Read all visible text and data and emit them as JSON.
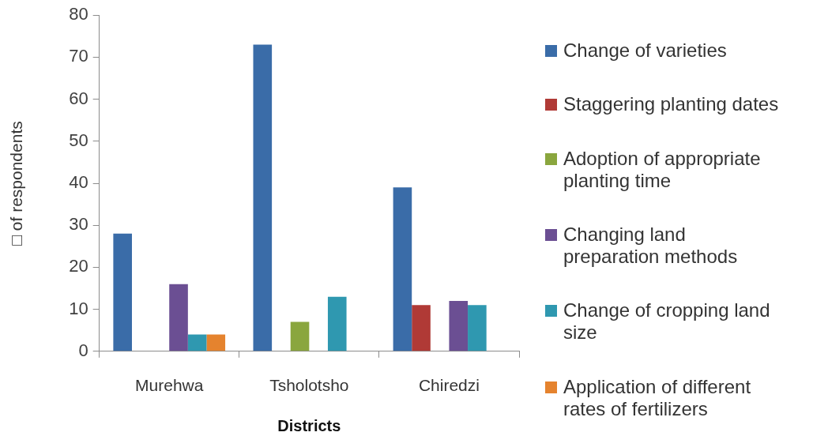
{
  "chart_data": {
    "type": "bar",
    "xlabel": "Districts",
    "ylabel": "□ of respondents",
    "categories": [
      "Murehwa",
      "Tsholotsho",
      "Chiredzi"
    ],
    "series": [
      {
        "name": "Change of varieties",
        "color": "#3a6ca8",
        "values": [
          28,
          73,
          39
        ]
      },
      {
        "name": "Staggering planting dates",
        "color": "#b03a36",
        "values": [
          null,
          null,
          11
        ]
      },
      {
        "name": "Adoption of appropriate planting time",
        "color": "#8aa63e",
        "values": [
          null,
          7,
          null
        ]
      },
      {
        "name": "Changing land preparation methods",
        "color": "#6b4f93",
        "values": [
          16,
          null,
          12
        ]
      },
      {
        "name": "Change of cropping land size",
        "color": "#2f98b0",
        "values": [
          4,
          13,
          11
        ]
      },
      {
        "name": "Application of different rates of fertilizers",
        "color": "#e5832e",
        "values": [
          4,
          null,
          null
        ]
      }
    ],
    "ylim": [
      0,
      80
    ],
    "yticks": [
      0,
      10,
      20,
      30,
      40,
      50,
      60,
      70,
      80
    ],
    "legend": "right"
  }
}
